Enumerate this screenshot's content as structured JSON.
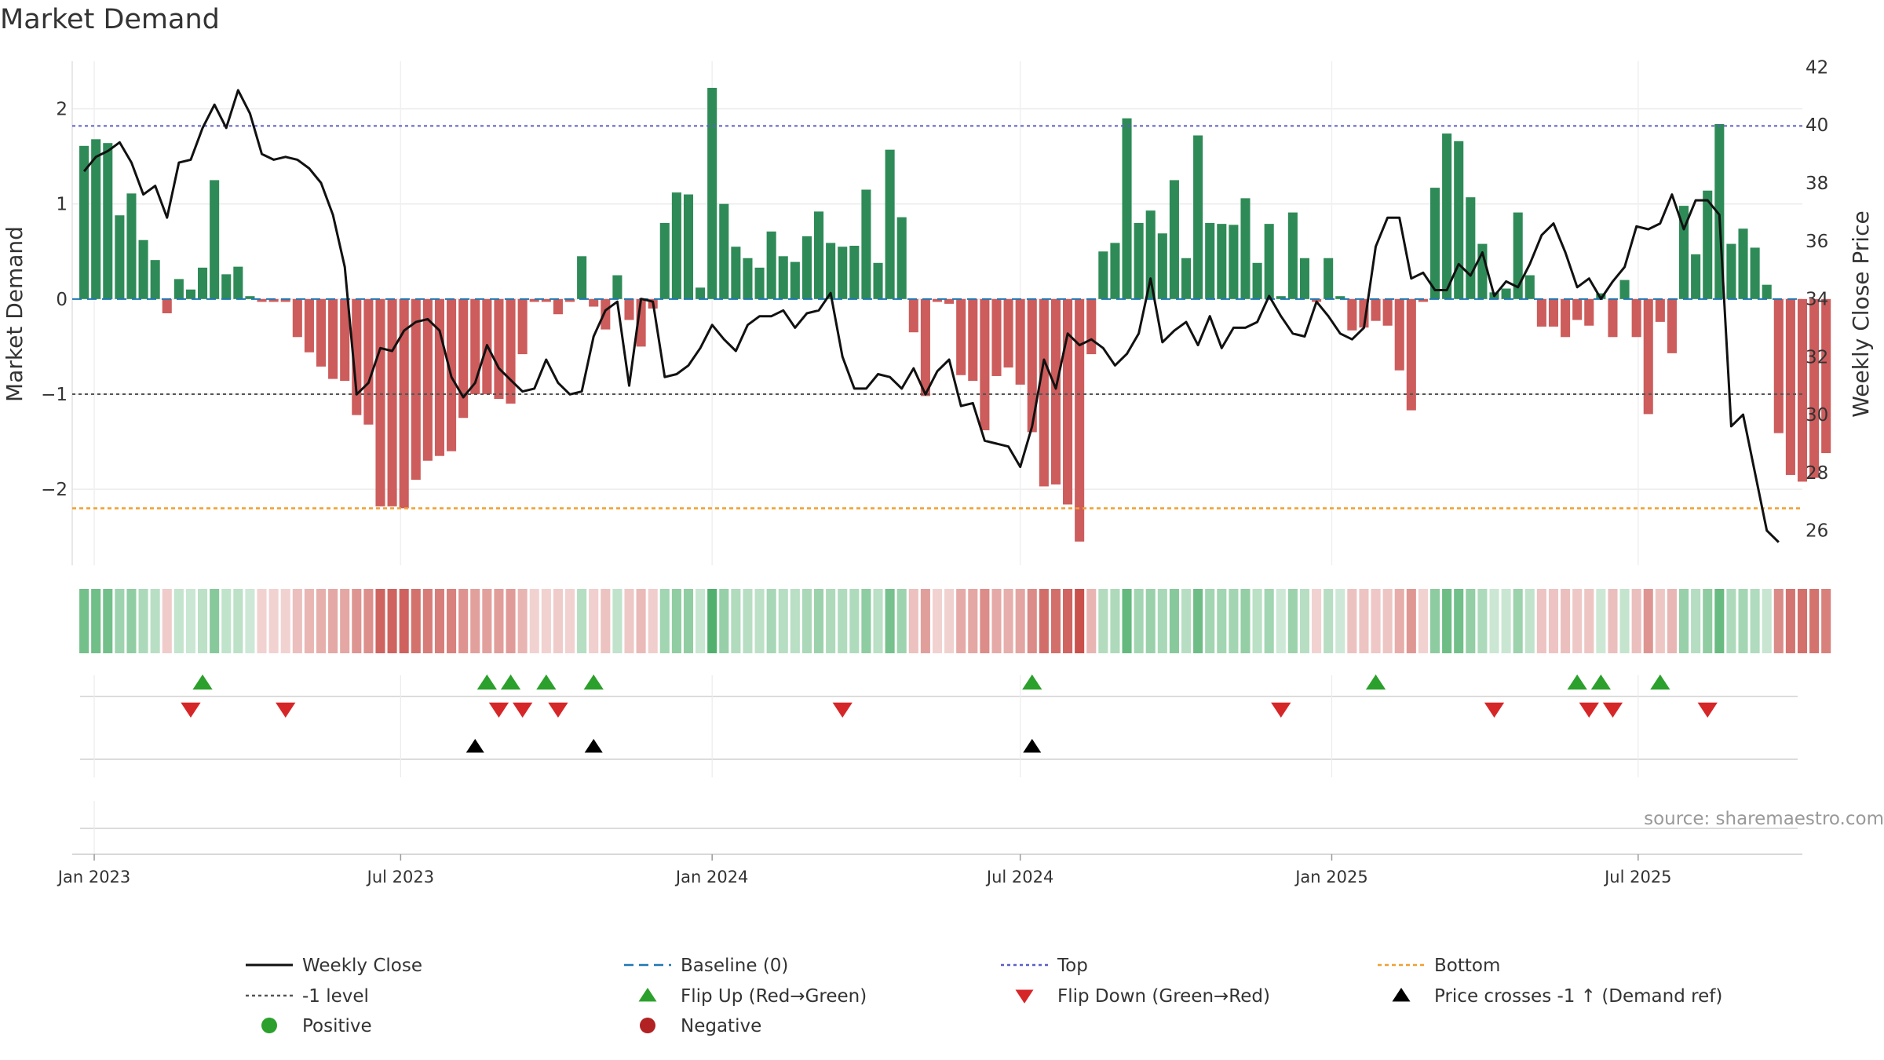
{
  "chart_data": {
    "type": "bar",
    "title": "Market Demand",
    "ylabel": "Market Demand",
    "y2label": "Weekly Close Price",
    "ylim": [
      -2.8,
      2.5
    ],
    "y2lim": [
      24.8,
      42.2
    ],
    "yticks": [
      {
        "v": 2,
        "label": "2"
      },
      {
        "v": 1,
        "label": "1"
      },
      {
        "v": 0,
        "label": "0"
      },
      {
        "v": -1,
        "label": "−1"
      },
      {
        "v": -2,
        "label": "−2"
      }
    ],
    "y2ticks": [
      {
        "v": 42,
        "label": "42"
      },
      {
        "v": 40,
        "label": "40"
      },
      {
        "v": 38,
        "label": "38"
      },
      {
        "v": 36,
        "label": "36"
      },
      {
        "v": 34,
        "label": "34"
      },
      {
        "v": 32,
        "label": "32"
      },
      {
        "v": 30,
        "label": "30"
      },
      {
        "v": 28,
        "label": "28"
      },
      {
        "v": 26,
        "label": "26"
      }
    ],
    "x_start": "2022-12-19",
    "x_end": "2025-10-06",
    "xticks": [
      {
        "date": "2023-01-01",
        "label": "Jan 2023"
      },
      {
        "date": "2023-07-01",
        "label": "Jul 2023"
      },
      {
        "date": "2024-01-01",
        "label": "Jan 2024"
      },
      {
        "date": "2024-07-01",
        "label": "Jul 2024"
      },
      {
        "date": "2025-01-01",
        "label": "Jan 2025"
      },
      {
        "date": "2025-07-01",
        "label": "Jul 2025"
      }
    ],
    "first_week": "2022-12-26",
    "demand": [
      1.61,
      1.68,
      1.64,
      0.88,
      1.11,
      0.62,
      0.41,
      -0.15,
      0.21,
      0.1,
      0.33,
      1.25,
      0.26,
      0.34,
      0.03,
      -0.03,
      -0.03,
      -0.03,
      -0.4,
      -0.56,
      -0.71,
      -0.84,
      -0.86,
      -1.22,
      -1.32,
      -2.18,
      -2.18,
      -2.2,
      -1.9,
      -1.7,
      -1.65,
      -1.6,
      -1.25,
      -1.0,
      -1.0,
      -1.05,
      -1.1,
      -0.58,
      -0.03,
      -0.03,
      -0.16,
      -0.03,
      0.45,
      -0.08,
      -0.32,
      0.25,
      -0.22,
      -0.5,
      -0.1,
      0.8,
      1.12,
      1.1,
      0.12,
      2.22,
      1.0,
      0.55,
      0.43,
      0.33,
      0.71,
      0.45,
      0.39,
      0.66,
      0.92,
      0.59,
      0.55,
      0.56,
      1.15,
      0.38,
      1.57,
      0.86,
      -0.35,
      -1.02,
      -0.03,
      -0.05,
      -0.8,
      -0.86,
      -1.38,
      -0.81,
      -0.72,
      -0.9,
      -1.4,
      -1.97,
      -1.95,
      -2.16,
      -2.55,
      -0.58,
      0.5,
      0.59,
      1.9,
      0.8,
      0.93,
      0.69,
      1.25,
      0.43,
      1.72,
      0.8,
      0.79,
      0.78,
      1.06,
      0.38,
      0.79,
      0.03,
      0.91,
      0.43,
      -0.03,
      0.43,
      0.03,
      -0.33,
      -0.3,
      -0.23,
      -0.28,
      -0.75,
      -1.17,
      -0.03,
      1.17,
      1.74,
      1.66,
      1.07,
      0.58,
      0.07,
      0.11,
      0.91,
      0.25,
      -0.29,
      -0.29,
      -0.4,
      -0.22,
      -0.28,
      0.06,
      -0.4,
      0.2,
      -0.4,
      -1.21,
      -0.24,
      -0.57,
      0.98,
      0.47,
      1.14,
      1.84,
      0.58,
      0.74,
      0.54,
      0.15,
      -1.41,
      -1.85,
      -1.92,
      -1.88,
      -1.62
    ],
    "close": [
      38.4,
      38.9,
      39.1,
      39.4,
      38.7,
      37.6,
      37.9,
      36.8,
      38.7,
      38.8,
      39.9,
      40.7,
      39.9,
      41.2,
      40.4,
      39.0,
      38.8,
      38.9,
      38.8,
      38.5,
      38.0,
      36.9,
      35.1,
      30.7,
      31.1,
      32.3,
      32.2,
      32.9,
      33.2,
      33.3,
      32.9,
      31.3,
      30.6,
      31.1,
      32.4,
      31.6,
      31.2,
      30.8,
      30.9,
      31.9,
      31.1,
      30.7,
      30.8,
      32.7,
      33.6,
      33.9,
      31.0,
      34.0,
      33.9,
      31.3,
      31.4,
      31.7,
      32.3,
      33.1,
      32.6,
      32.2,
      33.1,
      33.4,
      33.4,
      33.6,
      33.0,
      33.5,
      33.6,
      34.2,
      32.0,
      30.9,
      30.9,
      31.4,
      31.3,
      30.9,
      31.6,
      30.7,
      31.5,
      31.9,
      30.3,
      30.4,
      29.1,
      29.0,
      28.9,
      28.2,
      29.6,
      31.9,
      30.9,
      32.8,
      32.4,
      32.6,
      32.3,
      31.7,
      32.1,
      32.8,
      34.7,
      32.5,
      32.9,
      33.2,
      32.4,
      33.4,
      32.3,
      33.0,
      33.0,
      33.2,
      34.1,
      33.4,
      32.8,
      32.7,
      33.9,
      33.4,
      32.8,
      32.6,
      33.0,
      35.8,
      36.8,
      36.8,
      34.7,
      34.9,
      34.3,
      34.3,
      35.2,
      34.8,
      35.6,
      34.1,
      34.6,
      34.4,
      35.2,
      36.2,
      36.6,
      35.6,
      34.4,
      34.7,
      34.0,
      34.6,
      35.1,
      36.5,
      36.4,
      36.6,
      37.6,
      36.4,
      37.4,
      37.4,
      36.9,
      29.6,
      30.0,
      28.0,
      26.0,
      25.6
    ]
  },
  "markers": {
    "flip_up": [
      "2023-03-06",
      "2023-08-21",
      "2023-09-04",
      "2023-09-25",
      "2023-10-23",
      "2024-07-08",
      "2025-01-27",
      "2025-05-26",
      "2025-06-09",
      "2025-07-14"
    ],
    "flip_down": [
      "2023-02-27",
      "2023-04-24",
      "2023-08-28",
      "2023-09-11",
      "2023-10-02",
      "2024-03-18",
      "2024-12-02",
      "2025-04-07",
      "2025-06-02",
      "2025-06-16",
      "2025-08-11"
    ],
    "price_cross": [
      "2023-08-14",
      "2023-10-23",
      "2024-07-08"
    ]
  },
  "colors": {
    "pos": "#2e8b57",
    "neg": "#cd5c5c",
    "close": "#111111",
    "baseline": "#1f77b4",
    "top": "#5b5ec7",
    "bottom": "#f0a030",
    "minus_one": "#555555",
    "flip_up": "#2ca02c",
    "flip_down": "#d62728",
    "cross": "#000000",
    "positive_dot": "#2ca02c",
    "negative_dot": "#b22222"
  },
  "ref_lines": {
    "top": 1.82,
    "bottom": -2.2,
    "minus_one": -1
  },
  "source": "source: sharemaestro.com",
  "legend": {
    "weekly_close": "Weekly Close",
    "baseline": "Baseline (0)",
    "top": "Top",
    "bottom": "Bottom",
    "minus_one": "-1 level",
    "flip_up": "Flip Up (Red→Green)",
    "flip_down": "Flip Down (Green→Red)",
    "price_cross": "Price crosses -1 ↑ (Demand ref)",
    "positive": "Positive",
    "negative": "Negative"
  }
}
